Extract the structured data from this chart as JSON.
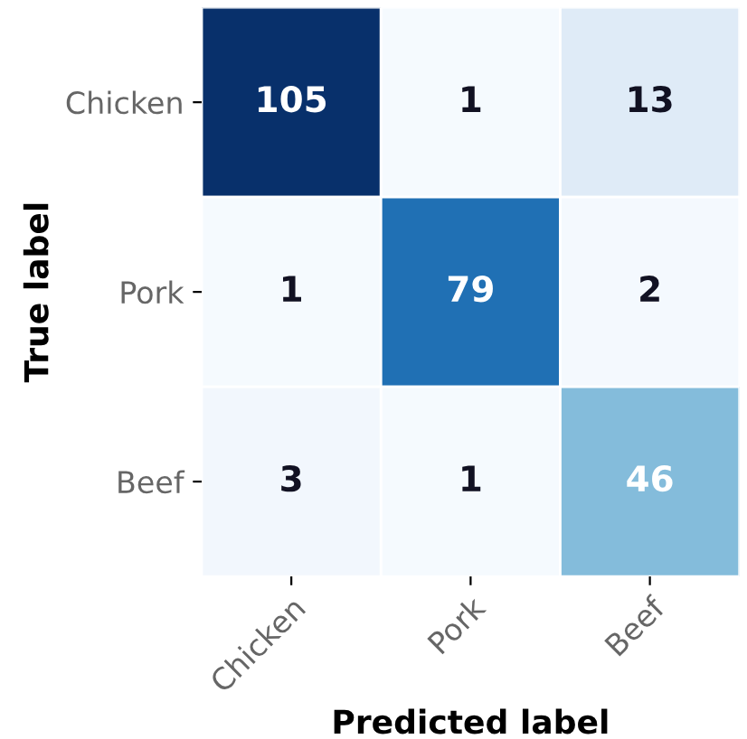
{
  "chart_data": {
    "type": "heatmap",
    "categories": [
      "Chicken",
      "Pork",
      "Beef"
    ],
    "y_categories": [
      "Chicken",
      "Pork",
      "Beef"
    ],
    "cells": [
      [
        105,
        1,
        13
      ],
      [
        1,
        79,
        2
      ],
      [
        3,
        1,
        46
      ]
    ],
    "xlabel": "Predicted label",
    "ylabel": "True label",
    "data_labels": true
  }
}
